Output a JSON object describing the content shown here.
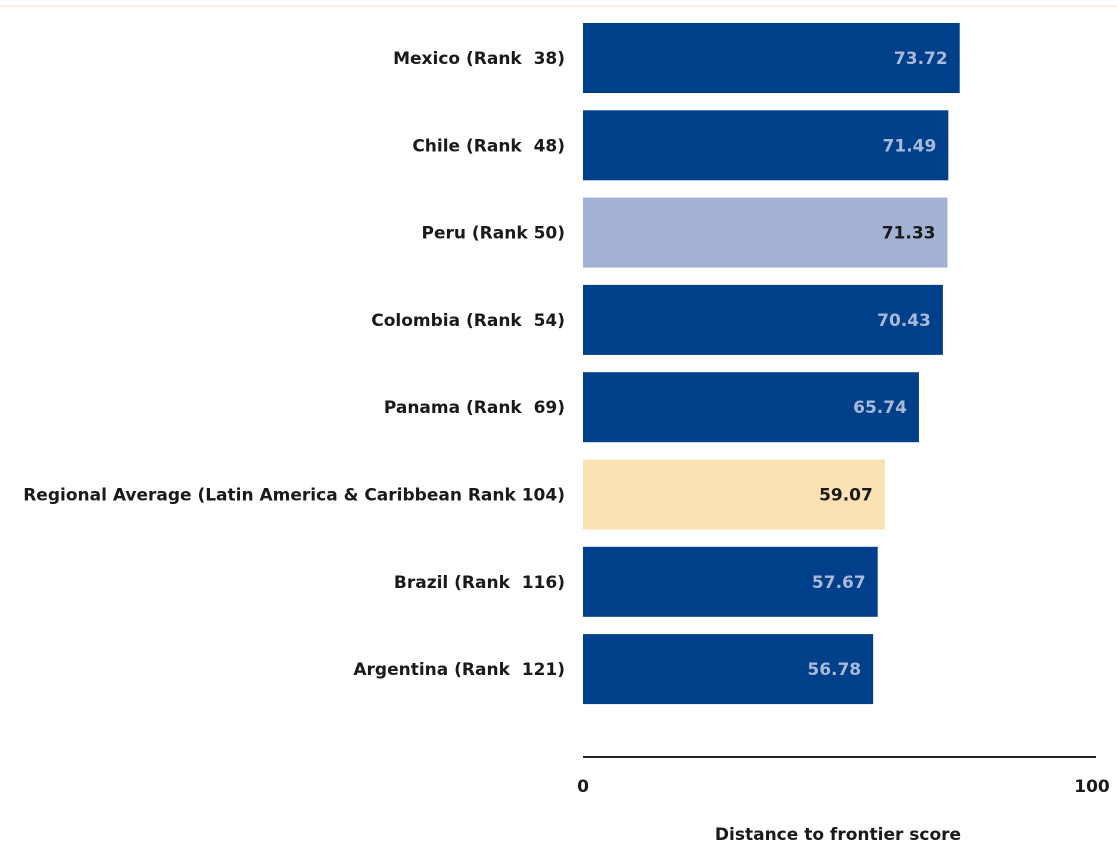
{
  "chart_data": {
    "type": "bar",
    "orientation": "horizontal",
    "categories": [
      "Mexico (Rank  38)",
      "Chile (Rank  48)",
      "Peru (Rank 50)",
      "Colombia (Rank  54)",
      "Panama (Rank  69)",
      "Regional Average (Latin America & Caribbean Rank 104)",
      "Brazil (Rank  116)",
      "Argentina (Rank  121)"
    ],
    "values": [
      73.72,
      71.49,
      71.33,
      70.43,
      65.74,
      59.07,
      57.67,
      56.78
    ],
    "value_labels": [
      "73.72",
      "71.49",
      "71.33",
      "70.43",
      "65.74",
      "59.07",
      "57.67",
      "56.78"
    ],
    "bar_colors": [
      "#003f8a",
      "#003f8a",
      "#a3b1d4",
      "#003f8a",
      "#003f8a",
      "#fbe2b3",
      "#003f8a",
      "#003f8a"
    ],
    "value_label_colors": [
      "#a9b9d8",
      "#a9b9d8",
      "#1a1a1a",
      "#a9b9d8",
      "#a9b9d8",
      "#1a1a1a",
      "#a9b9d8",
      "#a9b9d8"
    ],
    "xlabel": "Distance to frontier score",
    "ylabel": "",
    "title": "",
    "xlim": [
      0,
      100
    ],
    "x_ticks": [
      "0",
      "100"
    ],
    "grid": false,
    "legend": "none",
    "colors": {
      "primary_bar": "#003f8a",
      "highlight_bar": "#a3b1d4",
      "average_bar": "#fbe2b3",
      "axis": "#222222",
      "text": "#1a1a1a"
    }
  }
}
